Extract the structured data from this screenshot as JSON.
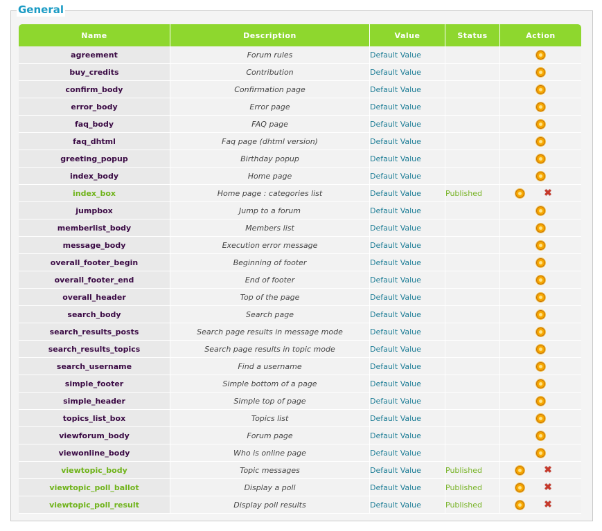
{
  "section": {
    "title": "General"
  },
  "columns": {
    "name": "Name",
    "description": "Description",
    "value": "Value",
    "status": "Status",
    "action": "Action"
  },
  "icons": {
    "edit": "gear-edit-icon",
    "delete": "red-cross-delete-icon"
  },
  "delete_glyph": "✖",
  "colors": {
    "header_bg": "#8ed72e",
    "title": "#1b9bc4",
    "name_default": "#3a0a44",
    "name_published": "#6fb31a",
    "value_link": "#1d7d96",
    "status_published": "#78b428"
  },
  "rows": [
    {
      "name": "agreement",
      "description": "Forum rules",
      "value": "Default Value",
      "status": ""
    },
    {
      "name": "buy_credits",
      "description": "Contribution",
      "value": "Default Value",
      "status": ""
    },
    {
      "name": "confirm_body",
      "description": "Confirmation page",
      "value": "Default Value",
      "status": ""
    },
    {
      "name": "error_body",
      "description": "Error page",
      "value": "Default Value",
      "status": ""
    },
    {
      "name": "faq_body",
      "description": "FAQ page",
      "value": "Default Value",
      "status": ""
    },
    {
      "name": "faq_dhtml",
      "description": "Faq page (dhtml version)",
      "value": "Default Value",
      "status": ""
    },
    {
      "name": "greeting_popup",
      "description": "Birthday popup",
      "value": "Default Value",
      "status": ""
    },
    {
      "name": "index_body",
      "description": "Home page",
      "value": "Default Value",
      "status": ""
    },
    {
      "name": "index_box",
      "description": "Home page : categories list",
      "value": "Default Value",
      "status": "Published"
    },
    {
      "name": "jumpbox",
      "description": "Jump to a forum",
      "value": "Default Value",
      "status": ""
    },
    {
      "name": "memberlist_body",
      "description": "Members list",
      "value": "Default Value",
      "status": ""
    },
    {
      "name": "message_body",
      "description": "Execution error message",
      "value": "Default Value",
      "status": ""
    },
    {
      "name": "overall_footer_begin",
      "description": "Beginning of footer",
      "value": "Default Value",
      "status": ""
    },
    {
      "name": "overall_footer_end",
      "description": "End of footer",
      "value": "Default Value",
      "status": ""
    },
    {
      "name": "overall_header",
      "description": "Top of the page",
      "value": "Default Value",
      "status": ""
    },
    {
      "name": "search_body",
      "description": "Search page",
      "value": "Default Value",
      "status": ""
    },
    {
      "name": "search_results_posts",
      "description": "Search page results in message mode",
      "value": "Default Value",
      "status": ""
    },
    {
      "name": "search_results_topics",
      "description": "Search page results in topic mode",
      "value": "Default Value",
      "status": ""
    },
    {
      "name": "search_username",
      "description": "Find a username",
      "value": "Default Value",
      "status": ""
    },
    {
      "name": "simple_footer",
      "description": "Simple bottom of a page",
      "value": "Default Value",
      "status": ""
    },
    {
      "name": "simple_header",
      "description": "Simple top of page",
      "value": "Default Value",
      "status": ""
    },
    {
      "name": "topics_list_box",
      "description": "Topics list",
      "value": "Default Value",
      "status": ""
    },
    {
      "name": "viewforum_body",
      "description": "Forum page",
      "value": "Default Value",
      "status": ""
    },
    {
      "name": "viewonline_body",
      "description": "Who is online page",
      "value": "Default Value",
      "status": ""
    },
    {
      "name": "viewtopic_body",
      "description": "Topic messages",
      "value": "Default Value",
      "status": "Published"
    },
    {
      "name": "viewtopic_poll_ballot",
      "description": "Display a poll",
      "value": "Default Value",
      "status": "Published"
    },
    {
      "name": "viewtopic_poll_result",
      "description": "Display poll results",
      "value": "Default Value",
      "status": "Published"
    }
  ]
}
